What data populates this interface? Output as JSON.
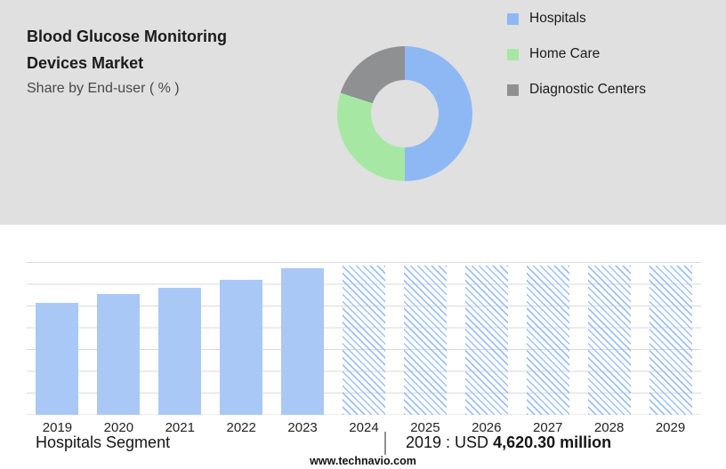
{
  "header": {
    "title_line1": "Blood Glucose Monitoring",
    "title_line2": "Devices Market",
    "subtitle": "Share by End-user ( % )"
  },
  "chart_data": [
    {
      "type": "pie",
      "donut": true,
      "title": "Share by End-user ( % )",
      "labels": [
        "Hospitals",
        "Home Care",
        "Diagnostic Centers"
      ],
      "values": [
        50,
        30,
        20
      ],
      "colors": [
        "#8eb8f4",
        "#a6e8a3",
        "#8f9092"
      ],
      "legend_position": "right"
    },
    {
      "type": "bar",
      "categories": [
        "2019",
        "2020",
        "2021",
        "2022",
        "2023",
        "2024",
        "2025",
        "2026",
        "2027",
        "2028",
        "2029"
      ],
      "values": [
        4620.3,
        4970,
        5230,
        5570,
        6040,
        6150,
        6150,
        6150,
        6150,
        6150,
        6150
      ],
      "styles": [
        "solid",
        "solid",
        "solid",
        "solid",
        "solid",
        "hatched",
        "hatched",
        "hatched",
        "hatched",
        "hatched",
        "hatched"
      ],
      "ylim": [
        0,
        6300
      ],
      "grid": true,
      "bar_color": "#a9c8f6",
      "hatch_color": "#9dc1f5",
      "xlabel": "",
      "ylabel": "",
      "annotation": "2019 : USD 4,620.30 million"
    }
  ],
  "caption": {
    "segment_label": "Hospitals Segment",
    "separator": "|",
    "value_prefix": "2019 : USD ",
    "value_bold": "4,620.30 million"
  },
  "footer": {
    "url": "www.technavio.com"
  }
}
